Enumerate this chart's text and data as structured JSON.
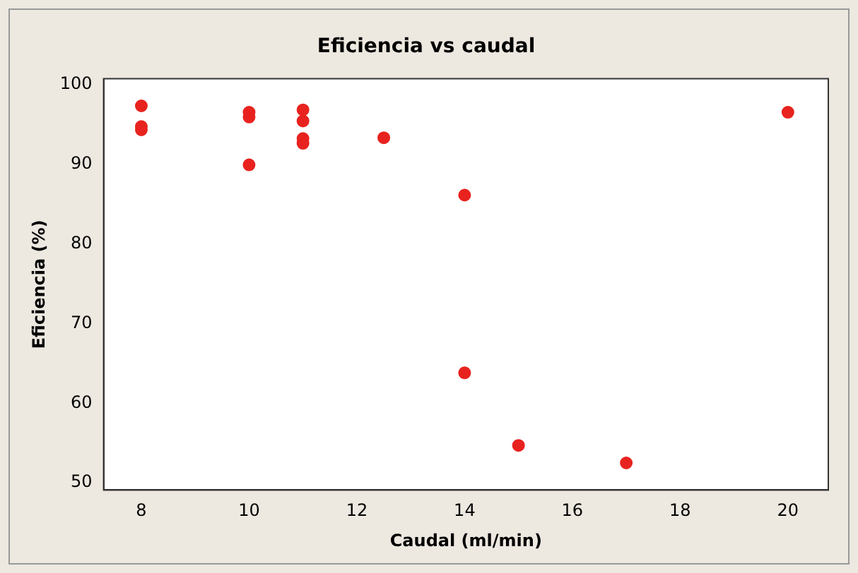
{
  "chart_data": {
    "type": "scatter",
    "title": "Eficiencia vs caudal",
    "xlabel": "Caudal (ml/min)",
    "ylabel": "Eficiencia (%)",
    "x": [
      8,
      8,
      8,
      10,
      10,
      10,
      11,
      11,
      11,
      11,
      12.5,
      14,
      14,
      15,
      17,
      20
    ],
    "values": [
      97.3,
      94.7,
      94.3,
      96.5,
      95.9,
      89.9,
      96.8,
      95.4,
      93.2,
      92.6,
      93.3,
      86.1,
      63.8,
      54.7,
      52.5,
      96.5
    ],
    "color": "#e8231f",
    "marker": "circle",
    "grid": false,
    "legend": false,
    "xlim": [
      7.3,
      20.75
    ],
    "xticks": [
      8,
      10,
      12,
      14,
      16,
      18,
      20
    ],
    "ylim": [
      49.1,
      100.7
    ],
    "yticks": [
      50,
      60,
      70,
      80,
      90,
      100
    ]
  }
}
